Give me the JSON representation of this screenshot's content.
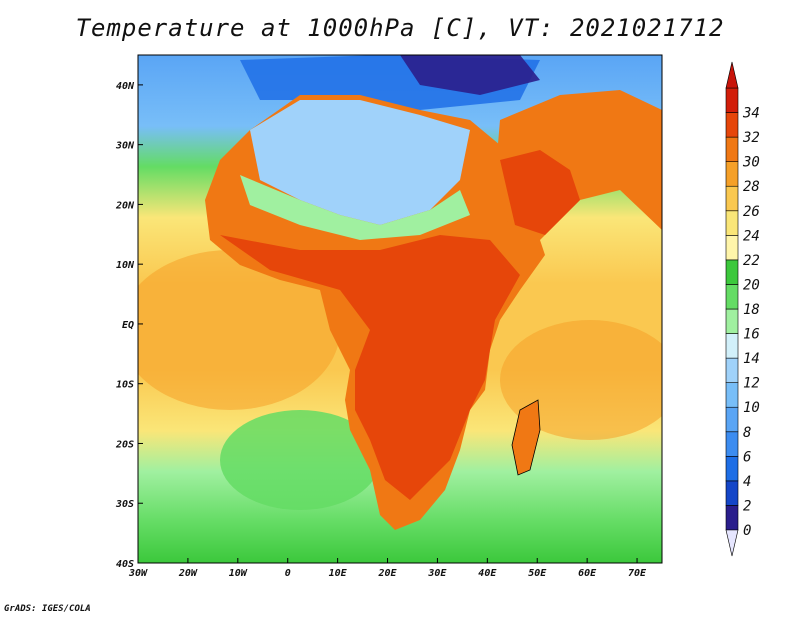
{
  "title": "Temperature at 1000hPa [C], VT: 2021021712",
  "credit": "GrADS: IGES/COLA",
  "map": {
    "lon_range": [
      -30,
      75
    ],
    "lat_range": [
      -40,
      45
    ],
    "lon_ticks": [
      {
        "value": -30,
        "label": "30W"
      },
      {
        "value": -20,
        "label": "20W"
      },
      {
        "value": -10,
        "label": "10W"
      },
      {
        "value": 0,
        "label": "0"
      },
      {
        "value": 10,
        "label": "10E"
      },
      {
        "value": 20,
        "label": "20E"
      },
      {
        "value": 30,
        "label": "30E"
      },
      {
        "value": 40,
        "label": "40E"
      },
      {
        "value": 50,
        "label": "50E"
      },
      {
        "value": 60,
        "label": "60E"
      },
      {
        "value": 70,
        "label": "70E"
      }
    ],
    "lat_ticks": [
      {
        "value": 40,
        "label": "40N"
      },
      {
        "value": 30,
        "label": "30N"
      },
      {
        "value": 20,
        "label": "20N"
      },
      {
        "value": 10,
        "label": "10N"
      },
      {
        "value": 0,
        "label": "EQ"
      },
      {
        "value": -10,
        "label": "10S"
      },
      {
        "value": -20,
        "label": "20S"
      },
      {
        "value": -30,
        "label": "30S"
      },
      {
        "value": -40,
        "label": "40S"
      }
    ]
  },
  "colorbar": {
    "levels": [
      0,
      2,
      4,
      6,
      8,
      10,
      12,
      14,
      16,
      18,
      20,
      22,
      24,
      26,
      28,
      30,
      32,
      34
    ],
    "colors": [
      "#2a1e8c",
      "#1446c8",
      "#1e6ee6",
      "#3c8cf0",
      "#5aa5f5",
      "#78bef8",
      "#a0d2fa",
      "#d2f0fa",
      "#a0f0a0",
      "#64dc64",
      "#3cc83c",
      "#fff5aa",
      "#fae678",
      "#fac850",
      "#f5a028",
      "#f07814",
      "#e6460a",
      "#d21e0a"
    ],
    "under_color": "#e6e6ff",
    "over_color": "#c8140a"
  }
}
